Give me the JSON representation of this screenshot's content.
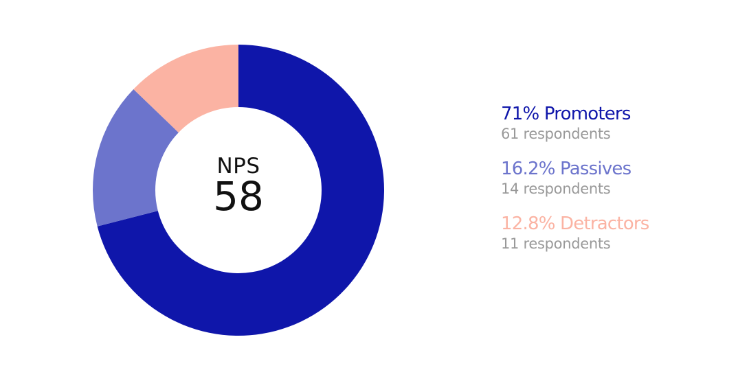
{
  "chart_data": {
    "type": "pie",
    "variant": "donut",
    "center": {
      "label": "NPS",
      "value": "58"
    },
    "segments": [
      {
        "name": "Promoters",
        "percent": 71,
        "percent_label": "71%",
        "respondents": 61,
        "respondents_label": "61 respondents",
        "color": "#0f16aa"
      },
      {
        "name": "Passives",
        "percent": 16.2,
        "percent_label": "16.2%",
        "respondents": 14,
        "respondents_label": "14 respondents",
        "color": "#6c74cc"
      },
      {
        "name": "Detractors",
        "percent": 12.8,
        "percent_label": "12.8%",
        "respondents": 11,
        "respondents_label": "11 respondents",
        "color": "#fbb3a3"
      }
    ],
    "legend_position": "right",
    "start_angle": "top",
    "direction": "clockwise"
  },
  "legend": {
    "items": [
      {
        "title": "71% Promoters",
        "subtitle": "61 respondents",
        "color": "#0f16aa"
      },
      {
        "title": "16.2% Passives",
        "subtitle": "14 respondents",
        "color": "#6c74cc"
      },
      {
        "title": "12.8% Detractors",
        "subtitle": "11 respondents",
        "color": "#fbb3a3"
      }
    ]
  }
}
